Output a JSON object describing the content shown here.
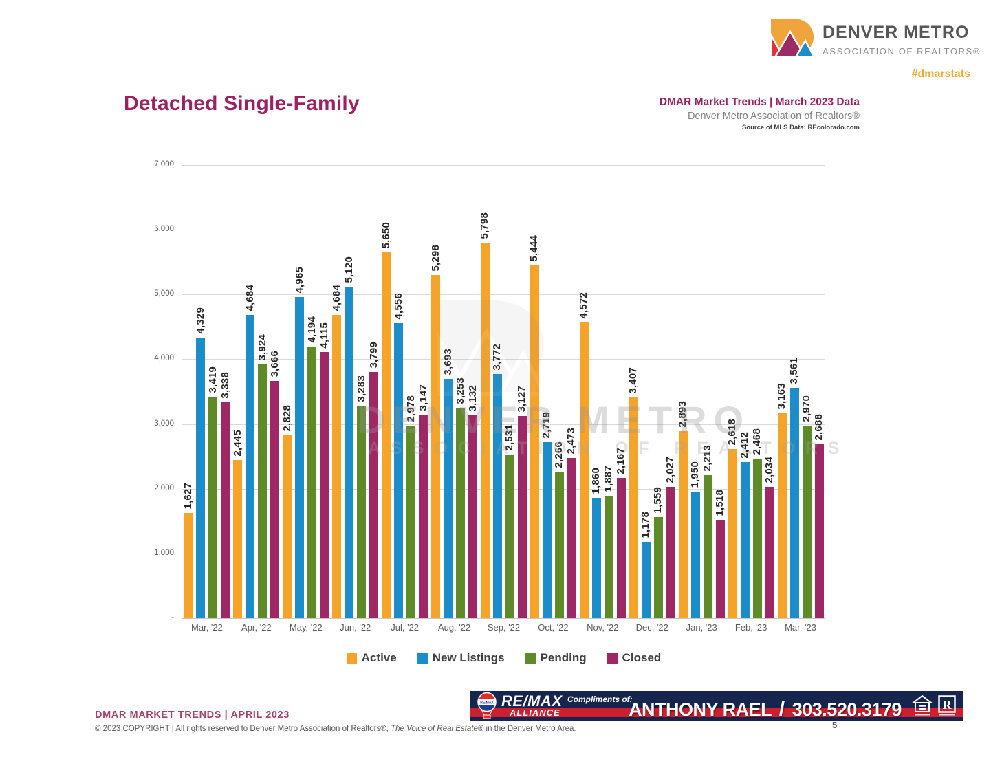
{
  "header": {
    "logo_line1": "DENVER METRO",
    "logo_line2": "ASSOCIATION OF REALTORS®",
    "hashtag": "#dmarstats",
    "title": "Detached Single-Family",
    "trends_title": "DMAR Market Trends | March 2023 Data",
    "trends_subtitle": "Denver Metro Association of Realtors®",
    "trends_source": "Source of MLS Data: REcolorado.com"
  },
  "icons": {
    "dmar_logo": "dmar-d-logo",
    "remax_balloon": "hot-air-balloon",
    "equal_housing": "equal-housing-logo",
    "realtor": "realtor-r-logo"
  },
  "colors": {
    "title_magenta": "#9C2162",
    "hashtag_orange": "#F5A72E",
    "banner_navy": "#16254E",
    "banner_red": "#CE1F2E",
    "gridline": "#D9D9D9"
  },
  "chart_data": {
    "type": "bar",
    "title": "Detached Single-Family",
    "categories": [
      "Mar, '22",
      "Apr, '22",
      "May, '22",
      "Jun, '22",
      "Jul, '22",
      "Aug, '22",
      "Sep, '22",
      "Oct, '22",
      "Nov, '22",
      "Dec, '22",
      "Jan, '23",
      "Feb, '23",
      "Mar, '23"
    ],
    "series": [
      {
        "name": "Active",
        "color": "#F6A329",
        "values": [
          1627,
          2445,
          2828,
          4684,
          5650,
          5298,
          5798,
          5444,
          4572,
          3407,
          2893,
          2618,
          3163
        ]
      },
      {
        "name": "New Listings",
        "color": "#1B8DCA",
        "values": [
          4329,
          4684,
          4965,
          5120,
          4556,
          3693,
          3772,
          2719,
          1860,
          1178,
          1950,
          2412,
          3561
        ]
      },
      {
        "name": "Pending",
        "color": "#5E8A28",
        "values": [
          3419,
          3924,
          4194,
          3283,
          2978,
          3253,
          2531,
          2266,
          1887,
          1559,
          2213,
          2468,
          2970
        ]
      },
      {
        "name": "Closed",
        "color": "#9E2766",
        "values": [
          3338,
          3666,
          4115,
          3799,
          3147,
          3132,
          3127,
          2473,
          2167,
          2027,
          1518,
          2034,
          2688
        ]
      }
    ],
    "xlabel": "",
    "ylabel": "",
    "ylim": [
      0,
      7000
    ],
    "ytick_interval": 1000,
    "ytick_labels_top_to_bottom": [
      "7,000",
      "6,000",
      "5,000",
      "4,000",
      "3,000",
      "2,000",
      "1,000",
      "-"
    ],
    "grid": true,
    "legend_position": "bottom",
    "bar_value_labels": "rotated-90-above-bars"
  },
  "watermark": {
    "line1": "DENVER METRO",
    "line2": "ASSOCIATION OF REALTORS"
  },
  "footer": {
    "left_title": "DMAR MARKET TRENDS | APRIL 2023",
    "copyright_prefix": "© 2023 COPYRIGHT | All rights reserved to Denver Metro Association of Realtors®, ",
    "copyright_italic": "The Voice of Real Estate®",
    "copyright_suffix": " in the Denver Metro Area.",
    "page_number": "5"
  },
  "banner": {
    "brand": "RE/MAX",
    "brand_sub": "ALLIANCE",
    "compliments": "Compliments of:",
    "agent_name": "ANTHONY RAEL",
    "separator": "/",
    "phone": "303.520.3179"
  }
}
